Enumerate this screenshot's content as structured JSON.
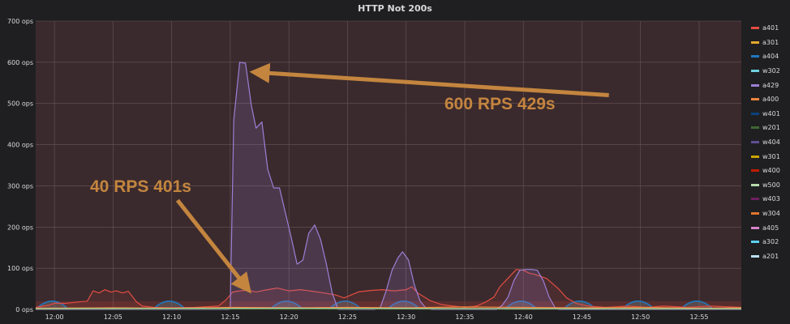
{
  "chart_data": {
    "type": "line",
    "title": "HTTP Not 200s",
    "xlabel": "",
    "ylabel": "",
    "x_tick_labels": [
      "12:00",
      "12:05",
      "12:10",
      "12:15",
      "12:20",
      "12:25",
      "12:30",
      "12:35",
      "12:40",
      "12:45",
      "12:50",
      "12:55"
    ],
    "y_tick_labels": [
      "0 ops",
      "100 ops",
      "200 ops",
      "300 ops",
      "400 ops",
      "500 ops",
      "600 ops",
      "700 ops"
    ],
    "x_range_minutes": [
      -1.6,
      58.6
    ],
    "ylim": [
      0,
      700
    ],
    "grid": true,
    "legend_position": "right",
    "threshold_band_top": 20,
    "series": [
      {
        "name": "a401",
        "color": "#e24d42",
        "values": [
          [
            -1.6,
            5
          ],
          [
            -0.5,
            10
          ],
          [
            0,
            15
          ],
          [
            1,
            15
          ],
          [
            2,
            18
          ],
          [
            2.8,
            20
          ],
          [
            3.3,
            45
          ],
          [
            3.8,
            40
          ],
          [
            4.3,
            48
          ],
          [
            4.8,
            42
          ],
          [
            5.3,
            45
          ],
          [
            5.8,
            40
          ],
          [
            6.3,
            44
          ],
          [
            7,
            18
          ],
          [
            7.5,
            8
          ],
          [
            8.5,
            5
          ],
          [
            10,
            4
          ],
          [
            12,
            5
          ],
          [
            14,
            8
          ],
          [
            14.7,
            25
          ],
          [
            15.2,
            42
          ],
          [
            15.8,
            45
          ],
          [
            16.5,
            47
          ],
          [
            17.2,
            42
          ],
          [
            18,
            47
          ],
          [
            19,
            52
          ],
          [
            20,
            45
          ],
          [
            21,
            48
          ],
          [
            22,
            44
          ],
          [
            23,
            40
          ],
          [
            24,
            35
          ],
          [
            24.7,
            28
          ],
          [
            25.3,
            35
          ],
          [
            26,
            43
          ],
          [
            27,
            46
          ],
          [
            28,
            48
          ],
          [
            29,
            45
          ],
          [
            30,
            48
          ],
          [
            30.5,
            55
          ],
          [
            31,
            40
          ],
          [
            32,
            22
          ],
          [
            33,
            12
          ],
          [
            34,
            8
          ],
          [
            35,
            5
          ],
          [
            36,
            8
          ],
          [
            36.8,
            18
          ],
          [
            37.5,
            30
          ],
          [
            38,
            55
          ],
          [
            38.5,
            70
          ],
          [
            39,
            85
          ],
          [
            39.4,
            97
          ],
          [
            40,
            95
          ],
          [
            40.5,
            88
          ],
          [
            41,
            85
          ],
          [
            41.5,
            80
          ],
          [
            42,
            75
          ],
          [
            43,
            50
          ],
          [
            43.7,
            28
          ],
          [
            44.5,
            15
          ],
          [
            45.5,
            8
          ],
          [
            47,
            5
          ],
          [
            49,
            8
          ],
          [
            50.5,
            5
          ],
          [
            52,
            8
          ],
          [
            54,
            5
          ],
          [
            56,
            8
          ],
          [
            58.6,
            5
          ]
        ]
      },
      {
        "name": "a429",
        "color": "#9c7fd6",
        "values": [
          [
            -1.6,
            0
          ],
          [
            14.9,
            0
          ],
          [
            15,
            5
          ],
          [
            15.3,
            460
          ],
          [
            15.8,
            600
          ],
          [
            16.3,
            598
          ],
          [
            16.8,
            495
          ],
          [
            17.2,
            440
          ],
          [
            17.7,
            455
          ],
          [
            18.2,
            340
          ],
          [
            18.7,
            295
          ],
          [
            19.2,
            295
          ],
          [
            20.2,
            175
          ],
          [
            20.7,
            110
          ],
          [
            21.2,
            120
          ],
          [
            21.7,
            185
          ],
          [
            22.2,
            205
          ],
          [
            22.7,
            170
          ],
          [
            23.2,
            110
          ],
          [
            23.7,
            40
          ],
          [
            24.2,
            0
          ],
          [
            27.3,
            0
          ],
          [
            27.8,
            5
          ],
          [
            28.3,
            45
          ],
          [
            28.8,
            95
          ],
          [
            29.3,
            125
          ],
          [
            29.7,
            140
          ],
          [
            30.2,
            120
          ],
          [
            30.7,
            60
          ],
          [
            31.2,
            20
          ],
          [
            31.7,
            3
          ],
          [
            32.2,
            0
          ],
          [
            37.7,
            0
          ],
          [
            38.2,
            10
          ],
          [
            38.7,
            30
          ],
          [
            39.2,
            70
          ],
          [
            39.7,
            95
          ],
          [
            40.2,
            97
          ],
          [
            40.7,
            97
          ],
          [
            41.2,
            95
          ],
          [
            41.7,
            70
          ],
          [
            42.2,
            30
          ],
          [
            42.7,
            5
          ],
          [
            43,
            0
          ],
          [
            58.6,
            0
          ]
        ]
      },
      {
        "name": "a400",
        "color": "#ef843c",
        "values": [
          [
            -1.6,
            3
          ],
          [
            5,
            4
          ],
          [
            10,
            3
          ],
          [
            15,
            5
          ],
          [
            20,
            4
          ],
          [
            25,
            5
          ],
          [
            30,
            4
          ],
          [
            35,
            6
          ],
          [
            40,
            5
          ],
          [
            45,
            4
          ],
          [
            50,
            5
          ],
          [
            55,
            3
          ],
          [
            58.6,
            4
          ]
        ]
      },
      {
        "name": "a301",
        "color": "#e5a82d",
        "values": [
          [
            -1.6,
            1
          ],
          [
            10,
            2
          ],
          [
            20,
            1
          ],
          [
            30,
            2
          ],
          [
            40,
            1
          ],
          [
            50,
            2
          ],
          [
            58.6,
            1
          ]
        ]
      },
      {
        "name": "w201",
        "color": "#3f6833",
        "values": [
          [
            -1.6,
            1
          ],
          [
            58.6,
            1
          ]
        ]
      },
      {
        "name": "w500",
        "color": "#b7dbab",
        "values": [
          [
            -1.6,
            2
          ],
          [
            20,
            3
          ],
          [
            40,
            2
          ],
          [
            58.6,
            2
          ]
        ]
      }
    ],
    "bump_series": {
      "name": "w302",
      "color": "#1f78c1",
      "fill_color": "#6ed0e0",
      "height": 20,
      "half_width_minutes": 1.4,
      "centers_minutes": [
        -0.2,
        9.8,
        19.8,
        24.8,
        29.8,
        39.8,
        44.8,
        49.8,
        54.8
      ]
    },
    "legend": [
      {
        "name": "a401",
        "color": "#e24d42"
      },
      {
        "name": "a301",
        "color": "#e5a82d"
      },
      {
        "name": "a404",
        "color": "#1f78c1"
      },
      {
        "name": "w302",
        "color": "#6ed0e0"
      },
      {
        "name": "a429",
        "color": "#9c7fd6"
      },
      {
        "name": "a400",
        "color": "#ef843c"
      },
      {
        "name": "w401",
        "color": "#0a437c"
      },
      {
        "name": "w201",
        "color": "#3f6833"
      },
      {
        "name": "w404",
        "color": "#614d93"
      },
      {
        "name": "w301",
        "color": "#cca300"
      },
      {
        "name": "w400",
        "color": "#bf1b00"
      },
      {
        "name": "w500",
        "color": "#b7dbab"
      },
      {
        "name": "w403",
        "color": "#6d1f62"
      },
      {
        "name": "w304",
        "color": "#e0752d"
      },
      {
        "name": "a405",
        "color": "#d683ce"
      },
      {
        "name": "a302",
        "color": "#5ad0f0"
      },
      {
        "name": "a201",
        "color": "#badff4"
      }
    ],
    "annotations": [
      {
        "text": "600 RPS 429s",
        "arrow_from": [
          47.3,
          520
        ],
        "arrow_to": [
          17.6,
          575
        ]
      },
      {
        "text": "40 RPS 401s",
        "arrow_from": [
          10.5,
          265
        ],
        "arrow_to": [
          16.2,
          60
        ]
      }
    ]
  }
}
